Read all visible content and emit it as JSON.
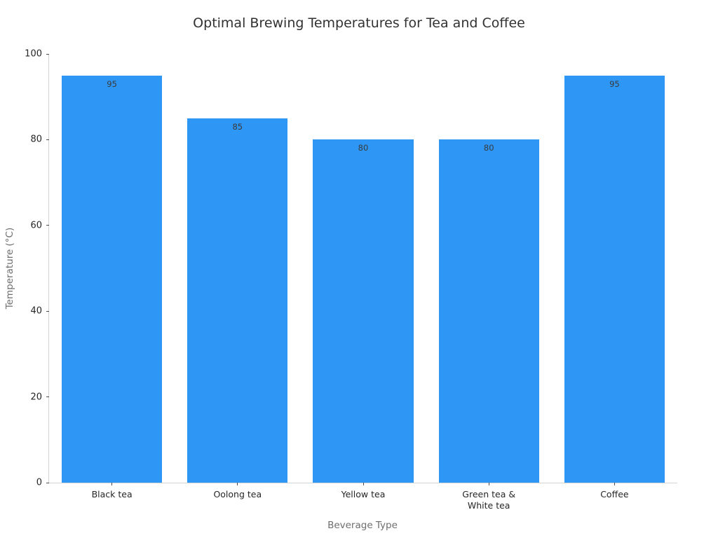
{
  "chart_data": {
    "type": "bar",
    "title": "Optimal Brewing Temperatures for Tea and Coffee",
    "xlabel": "Beverage Type",
    "ylabel": "Temperature (°C)",
    "categories": [
      "Black tea",
      "Oolong tea",
      "Yellow tea",
      "Green tea &\nWhite tea",
      "Coffee"
    ],
    "values": [
      95,
      85,
      80,
      80,
      95
    ],
    "bar_labels": [
      "95",
      "85",
      "80",
      "80",
      "95"
    ],
    "ylim": [
      0,
      100
    ],
    "yticks": [
      0,
      20,
      40,
      60,
      80,
      100
    ],
    "grid": false,
    "legend": "none",
    "colors": {
      "bar": "#2e96f5",
      "title_text": "#323232",
      "tick_text": "#262626",
      "axis_title_text": "#6e6e6e",
      "spine": "#d4d4d4"
    }
  }
}
